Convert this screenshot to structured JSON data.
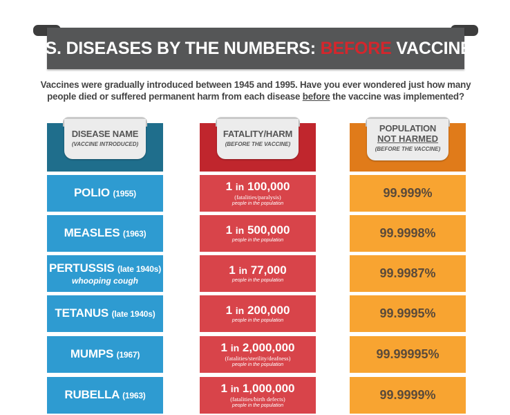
{
  "banner": {
    "title_before_accent": "U.S. DISEASES BY THE NUMBERS: ",
    "title_accent": "BEFORE",
    "title_after_accent": " VACCINES"
  },
  "intro": {
    "line1": "Vaccines were gradually introduced between 1945 and 1995.  Have you ever wondered just how many",
    "line2_before": "people died or suffered permanent harm from each disease ",
    "line2_underlined": "before",
    "line2_after": " the vaccine was implemented?"
  },
  "headers": {
    "disease": {
      "title": "DISEASE NAME",
      "subtitle": "(VACCINE INTRODUCED)"
    },
    "fatality": {
      "title": "FATALITY/HARM",
      "subtitle": "(BEFORE THE VACCINE)"
    },
    "population": {
      "title_line1": "POPULATION",
      "title_line2": "NOT HARMED",
      "subtitle": "(BEFORE THE VACCINE)"
    }
  },
  "colors": {
    "banner": "#555657",
    "accent_red": "#d5262c",
    "col1_header": "#1f6e8c",
    "col1_cell": "#2e9bd1",
    "col2_header": "#c0262d",
    "col2_cell": "#d8444a",
    "col3_header": "#e07b1a",
    "col3_cell": "#f8a431"
  },
  "rows": [
    {
      "disease": "POLIO",
      "year": "(1955)",
      "alt": "",
      "ratio_prefix": "1",
      "ratio_in": "in",
      "ratio_value": "100,000",
      "note": "(fatalities/paralysis)",
      "pop": "people in the population",
      "percent": "99.999%"
    },
    {
      "disease": "MEASLES",
      "year": "(1963)",
      "alt": "",
      "ratio_prefix": "1",
      "ratio_in": "in",
      "ratio_value": "500,000",
      "note": "",
      "pop": "people in the population",
      "percent": "99.9998%"
    },
    {
      "disease": "PERTUSSIS",
      "year": "(late 1940s)",
      "alt": "whooping cough",
      "ratio_prefix": "1",
      "ratio_in": "in",
      "ratio_value": "77,000",
      "note": "",
      "pop": "people in the population",
      "percent": "99.9987%"
    },
    {
      "disease": "TETANUS",
      "year": "(late 1940s)",
      "alt": "",
      "ratio_prefix": "1",
      "ratio_in": "in",
      "ratio_value": "200,000",
      "note": "",
      "pop": "people in the population",
      "percent": "99.9995%"
    },
    {
      "disease": "MUMPS",
      "year": "(1967)",
      "alt": "",
      "ratio_prefix": "1",
      "ratio_in": "in",
      "ratio_value": "2,000,000",
      "note": "(fatalities/sterility/deafness)",
      "pop": "people in the population",
      "percent": "99.99995%"
    },
    {
      "disease": "RUBELLA",
      "year": "(1963)",
      "alt": "",
      "ratio_prefix": "1",
      "ratio_in": "in",
      "ratio_value": "1,000,000",
      "note": "(fatalities/birth defects)",
      "pop": "people in the population",
      "percent": "99.9999%"
    }
  ]
}
